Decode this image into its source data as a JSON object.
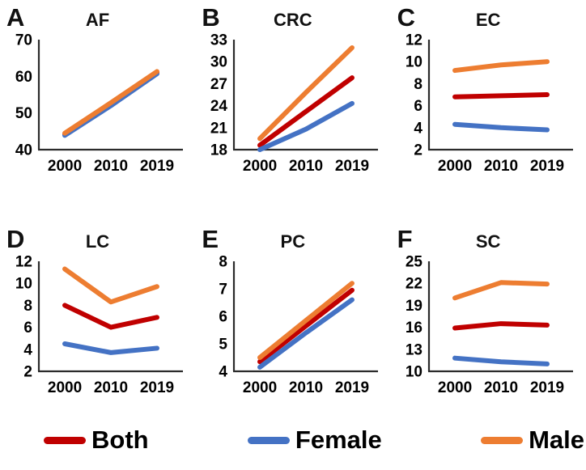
{
  "legend": [
    {
      "label": "Both",
      "color": "#C00000"
    },
    {
      "label": "Female",
      "color": "#4472C4"
    },
    {
      "label": "Male",
      "color": "#ED7D31"
    }
  ],
  "axis_color": "#2b2b2b",
  "chart_data": [
    {
      "type": "line",
      "letter": "A",
      "title": "AF",
      "categories": [
        "2000",
        "2010",
        "2019"
      ],
      "ylim": [
        40,
        70
      ],
      "yticks": [
        40,
        50,
        60,
        70
      ],
      "grid": false,
      "legend_position": "bottom-shared",
      "series": [
        {
          "name": "Both",
          "values": [
            44.2,
            52.4,
            61.0
          ]
        },
        {
          "name": "Female",
          "values": [
            43.9,
            52.0,
            60.7
          ]
        },
        {
          "name": "Male",
          "values": [
            44.5,
            52.8,
            61.3
          ]
        }
      ]
    },
    {
      "type": "line",
      "letter": "B",
      "title": "CRC",
      "categories": [
        "2000",
        "2010",
        "2019"
      ],
      "ylim": [
        18,
        33
      ],
      "yticks": [
        18,
        21,
        24,
        27,
        30,
        33
      ],
      "grid": false,
      "legend_position": "bottom-shared",
      "series": [
        {
          "name": "Both",
          "values": [
            18.6,
            23.2,
            27.8
          ]
        },
        {
          "name": "Female",
          "values": [
            18.0,
            20.8,
            24.3
          ]
        },
        {
          "name": "Male",
          "values": [
            19.5,
            25.8,
            31.9
          ]
        }
      ]
    },
    {
      "type": "line",
      "letter": "C",
      "title": "EC",
      "categories": [
        "2000",
        "2010",
        "2019"
      ],
      "ylim": [
        2,
        12
      ],
      "yticks": [
        2,
        4,
        6,
        8,
        10,
        12
      ],
      "grid": false,
      "legend_position": "bottom-shared",
      "series": [
        {
          "name": "Both",
          "values": [
            6.8,
            6.9,
            7.0
          ]
        },
        {
          "name": "Female",
          "values": [
            4.3,
            4.0,
            3.8
          ]
        },
        {
          "name": "Male",
          "values": [
            9.2,
            9.7,
            10.0
          ]
        }
      ]
    },
    {
      "type": "line",
      "letter": "D",
      "title": "LC",
      "categories": [
        "2000",
        "2010",
        "2019"
      ],
      "ylim": [
        2,
        12
      ],
      "yticks": [
        2,
        4,
        6,
        8,
        10,
        12
      ],
      "grid": false,
      "legend_position": "bottom-shared",
      "series": [
        {
          "name": "Both",
          "values": [
            8.0,
            6.0,
            6.9
          ]
        },
        {
          "name": "Female",
          "values": [
            4.5,
            3.7,
            4.1
          ]
        },
        {
          "name": "Male",
          "values": [
            11.3,
            8.3,
            9.7
          ]
        }
      ]
    },
    {
      "type": "line",
      "letter": "E",
      "title": "PC",
      "categories": [
        "2000",
        "2010",
        "2019"
      ],
      "ylim": [
        4,
        8
      ],
      "yticks": [
        4,
        5,
        6,
        7,
        8
      ],
      "grid": false,
      "legend_position": "bottom-shared",
      "series": [
        {
          "name": "Both",
          "values": [
            4.35,
            5.65,
            6.95
          ]
        },
        {
          "name": "Female",
          "values": [
            4.15,
            5.4,
            6.6
          ]
        },
        {
          "name": "Male",
          "values": [
            4.5,
            5.85,
            7.2
          ]
        }
      ]
    },
    {
      "type": "line",
      "letter": "F",
      "title": "SC",
      "categories": [
        "2000",
        "2010",
        "2019"
      ],
      "ylim": [
        10,
        25
      ],
      "yticks": [
        10,
        13,
        16,
        19,
        22,
        25
      ],
      "grid": false,
      "legend_position": "bottom-shared",
      "series": [
        {
          "name": "Both",
          "values": [
            15.9,
            16.5,
            16.3
          ]
        },
        {
          "name": "Female",
          "values": [
            11.8,
            11.3,
            11.0
          ]
        },
        {
          "name": "Male",
          "values": [
            20.0,
            22.1,
            21.9
          ]
        }
      ]
    }
  ]
}
